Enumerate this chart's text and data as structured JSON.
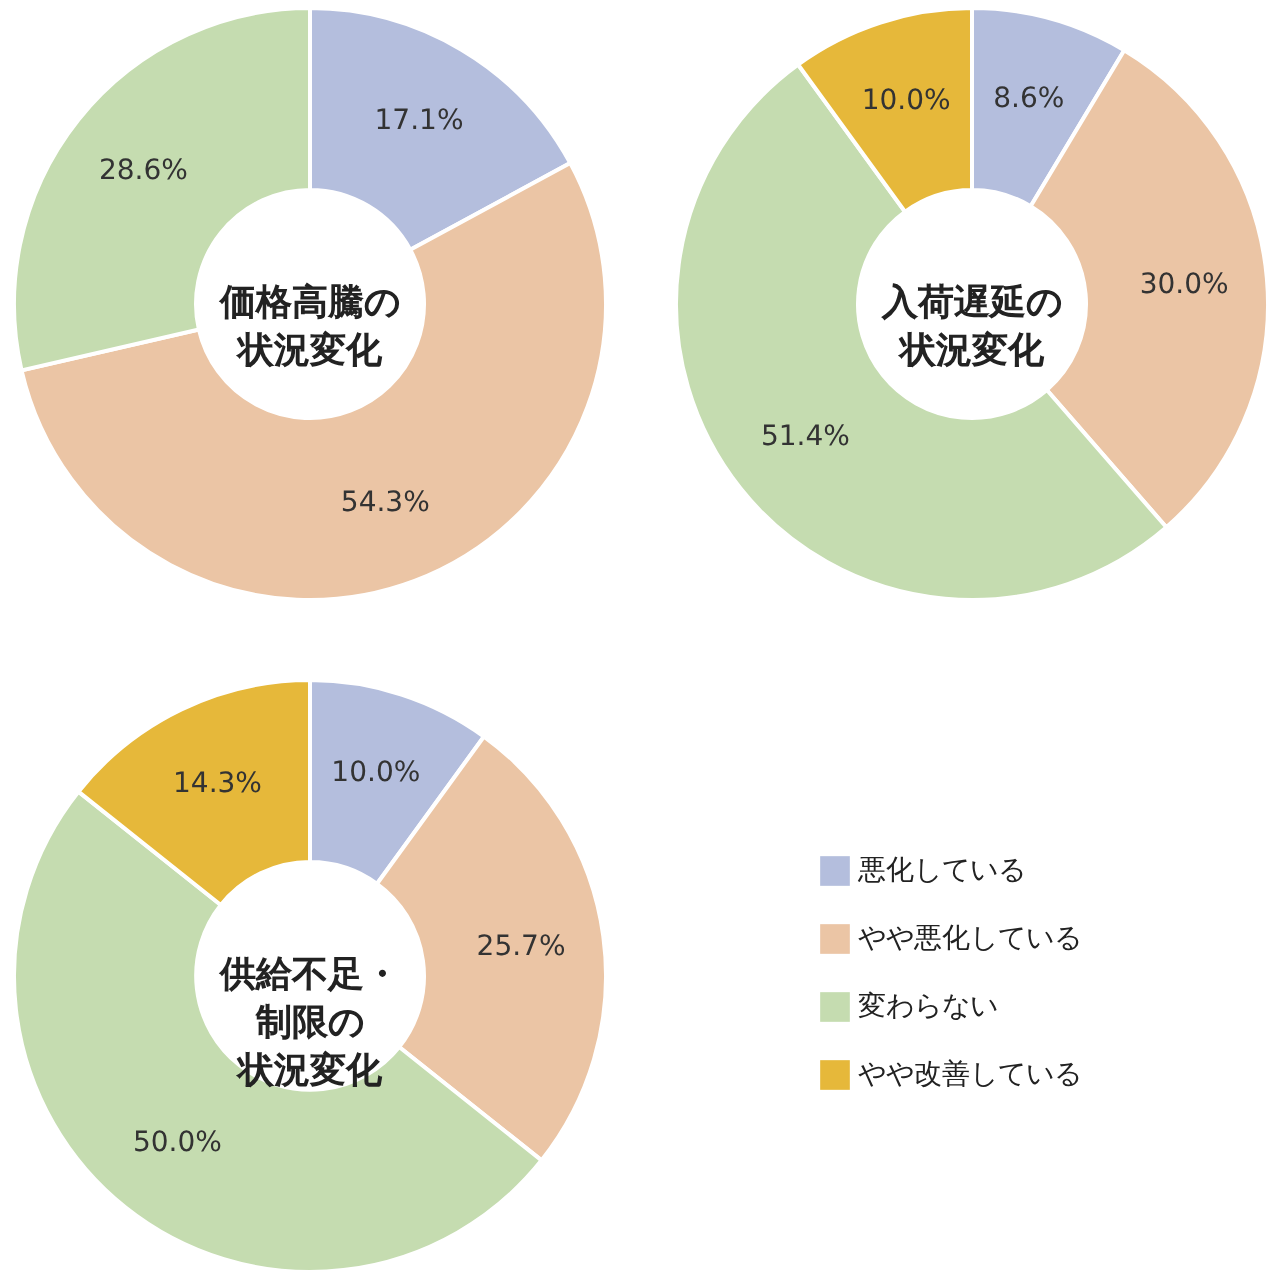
{
  "chart_data": [
    {
      "type": "donut",
      "title": "価格高騰の状況変化",
      "categories": [
        null,
        null,
        null
      ],
      "values": [
        17.1,
        54.3,
        28.6
      ],
      "colors": [
        "#b4bedd",
        "#ebc5a5",
        "#c5dcb0"
      ],
      "value_labels": [
        "17.1%",
        "54.3%",
        "28.6%"
      ],
      "legend": false
    },
    {
      "type": "donut",
      "title": "入荷遅延の状況変化",
      "categories": [
        null,
        null,
        null,
        null
      ],
      "values": [
        8.6,
        30.0,
        51.4,
        10.0
      ],
      "colors": [
        "#b4bedd",
        "#ebc5a5",
        "#c5dcb0",
        "#e6b83a"
      ],
      "value_labels": [
        "8.6%",
        "30.0%",
        "51.4%",
        "10.0%"
      ],
      "legend": false
    },
    {
      "type": "donut",
      "title": "供給不足・制限の状況変化",
      "categories": [
        "悪化している",
        "やや悪化している",
        "変わらない",
        "やや改善している"
      ],
      "values": [
        10.0,
        25.7,
        50.0,
        14.3
      ],
      "colors": [
        "#b4bedd",
        "#ebc5a5",
        "#c5dcb0",
        "#e6b83a"
      ],
      "value_labels": [
        "10.0%",
        "25.7%",
        "50.0%",
        "14.3%"
      ],
      "legend": "right"
    }
  ]
}
